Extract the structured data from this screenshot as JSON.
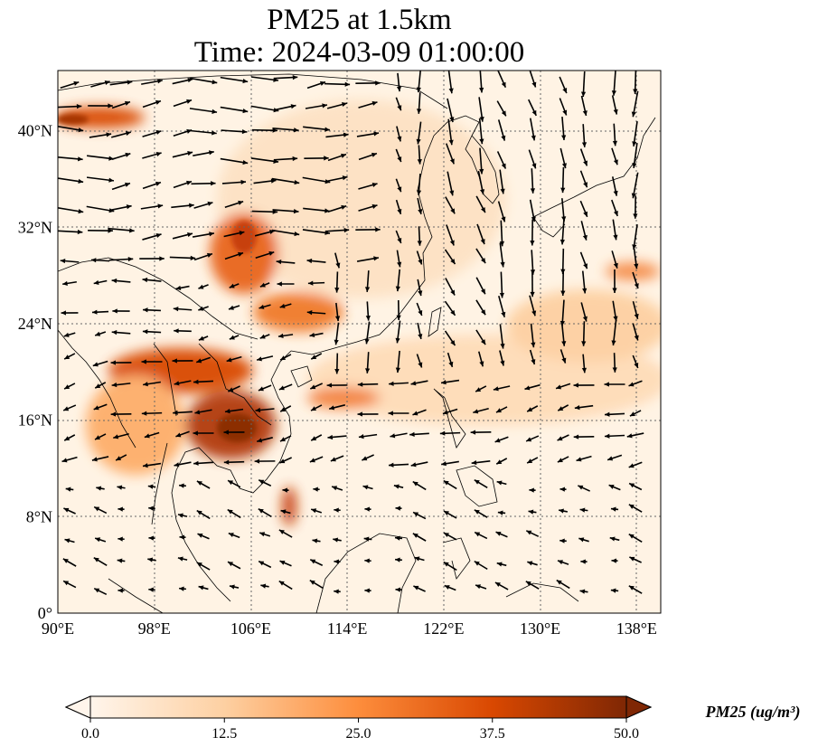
{
  "title": {
    "line1": "PM25 at 1.5km",
    "line2": "Time: 2024-03-09 01:00:00"
  },
  "map": {
    "lon_range": [
      90,
      140
    ],
    "lat_range": [
      0,
      45
    ],
    "lon_ticks": [
      {
        "value": 90,
        "label": "90°E"
      },
      {
        "value": 98,
        "label": "98°E"
      },
      {
        "value": 106,
        "label": "106°E"
      },
      {
        "value": 114,
        "label": "114°E"
      },
      {
        "value": 122,
        "label": "122°E"
      },
      {
        "value": 130,
        "label": "130°E"
      },
      {
        "value": 138,
        "label": "138°E"
      }
    ],
    "lat_ticks": [
      {
        "value": 0,
        "label": "0°"
      },
      {
        "value": 8,
        "label": "8°N"
      },
      {
        "value": 16,
        "label": "16°N"
      },
      {
        "value": 24,
        "label": "24°N"
      },
      {
        "value": 32,
        "label": "32°N"
      },
      {
        "value": 40,
        "label": "40°N"
      }
    ],
    "gridlines": "dotted",
    "colormap": [
      "#fff5eb",
      "#fdd0a2",
      "#fd8d3c",
      "#d94801",
      "#7f2704"
    ],
    "arrow_color": "#000000",
    "coastline_color": "#000000"
  },
  "colorbar": {
    "vmin": 0,
    "vmax": 50,
    "extend": "both",
    "ticks": [
      {
        "value": 0,
        "label": "0.0"
      },
      {
        "value": 12.5,
        "label": "12.5"
      },
      {
        "value": 25,
        "label": "25.0"
      },
      {
        "value": 37.5,
        "label": "37.5"
      },
      {
        "value": 50,
        "label": "50.0"
      }
    ],
    "label": "PM25 (ug/m³)"
  }
}
